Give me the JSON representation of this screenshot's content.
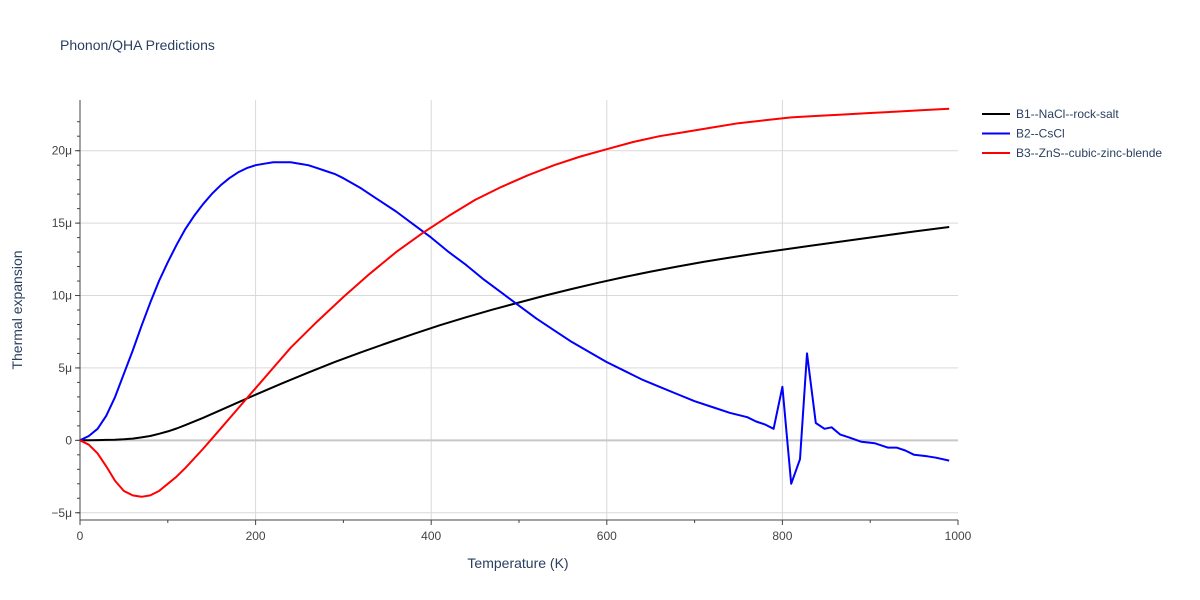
{
  "chart_data": {
    "type": "line",
    "title": "Phonon/QHA Predictions",
    "xlabel": "Temperature (K)",
    "ylabel": "Thermal expansion",
    "xlim": [
      0,
      1000
    ],
    "ylim": [
      -5.5e-06,
      2.35e-05
    ],
    "x_ticks": [
      0,
      200,
      400,
      600,
      800,
      1000
    ],
    "x_tick_labels": [
      "0",
      "200",
      "400",
      "600",
      "800",
      "1000"
    ],
    "y_ticks": [
      -5e-06,
      0,
      5e-06,
      1e-05,
      1.5e-05,
      2e-05
    ],
    "y_tick_labels": [
      "−5μ",
      "0",
      "5μ",
      "10μ",
      "15μ",
      "20μ"
    ],
    "grid": true,
    "legend_position": "top-right",
    "series": [
      {
        "name": "B1--NaCl--rock-salt",
        "color": "#000000",
        "x": [
          0,
          10,
          20,
          30,
          40,
          50,
          60,
          70,
          80,
          90,
          100,
          110,
          120,
          140,
          160,
          180,
          200,
          230,
          260,
          290,
          320,
          350,
          380,
          410,
          440,
          470,
          500,
          530,
          560,
          590,
          620,
          650,
          680,
          710,
          740,
          770,
          800,
          830,
          860,
          890,
          920,
          950,
          990
        ],
        "y": [
          0,
          1e-08,
          2e-08,
          3e-08,
          4e-08,
          7e-08,
          1.2e-07,
          2e-07,
          3e-07,
          4.5e-07,
          6.2e-07,
          8.2e-07,
          1.05e-06,
          1.55e-06,
          2.08e-06,
          2.62e-06,
          3.15e-06,
          3.93e-06,
          4.68e-06,
          5.4e-06,
          6.08e-06,
          6.72e-06,
          7.35e-06,
          7.95e-06,
          8.5e-06,
          9.03e-06,
          9.52e-06,
          1e-05,
          1.045e-05,
          1.088e-05,
          1.128e-05,
          1.165e-05,
          1.2e-05,
          1.232e-05,
          1.262e-05,
          1.29e-05,
          1.316e-05,
          1.342e-05,
          1.367e-05,
          1.392e-05,
          1.417e-05,
          1.442e-05,
          1.473e-05
        ]
      },
      {
        "name": "B2--CsCl",
        "color": "#0000ff",
        "x": [
          0,
          10,
          20,
          30,
          40,
          50,
          60,
          70,
          80,
          90,
          100,
          110,
          120,
          130,
          140,
          150,
          160,
          170,
          180,
          190,
          200,
          210,
          220,
          230,
          240,
          250,
          260,
          270,
          280,
          290,
          300,
          320,
          340,
          360,
          380,
          400,
          420,
          440,
          460,
          480,
          500,
          520,
          540,
          560,
          580,
          600,
          620,
          640,
          660,
          680,
          700,
          720,
          740,
          760,
          770,
          780,
          790,
          800,
          810,
          820,
          828,
          838,
          848,
          856,
          866,
          876,
          890,
          905,
          920,
          930,
          940,
          950,
          965,
          975,
          990
        ],
        "y": [
          0,
          3e-07,
          8e-07,
          1.7e-06,
          3e-06,
          4.6e-06,
          6.2e-06,
          7.9e-06,
          9.5e-06,
          1.1e-05,
          1.23e-05,
          1.35e-05,
          1.46e-05,
          1.55e-05,
          1.63e-05,
          1.7e-05,
          1.76e-05,
          1.81e-05,
          1.85e-05,
          1.88e-05,
          1.9e-05,
          1.91e-05,
          1.92e-05,
          1.92e-05,
          1.92e-05,
          1.91e-05,
          1.9e-05,
          1.88e-05,
          1.86e-05,
          1.84e-05,
          1.81e-05,
          1.74e-05,
          1.66e-05,
          1.58e-05,
          1.49e-05,
          1.4e-05,
          1.3e-05,
          1.21e-05,
          1.11e-05,
          1.02e-05,
          9.3e-06,
          8.4e-06,
          7.6e-06,
          6.8e-06,
          6.1e-06,
          5.4e-06,
          4.8e-06,
          4.2e-06,
          3.7e-06,
          3.2e-06,
          2.7e-06,
          2.3e-06,
          1.9e-06,
          1.6e-06,
          1.3e-06,
          1.1e-06,
          8e-07,
          3.7e-06,
          -3e-06,
          -1.3e-06,
          6e-06,
          1.2e-06,
          8e-07,
          9e-07,
          4e-07,
          2e-07,
          -1e-07,
          -2e-07,
          -5e-07,
          -5e-07,
          -7e-07,
          -1e-06,
          -1.1e-06,
          -1.2e-06,
          -1.4e-06
        ]
      },
      {
        "name": "B3--ZnS--cubic-zinc-blende",
        "color": "#ff0000",
        "x": [
          0,
          10,
          20,
          30,
          40,
          50,
          60,
          70,
          80,
          90,
          100,
          110,
          120,
          140,
          160,
          180,
          200,
          220,
          240,
          270,
          300,
          330,
          360,
          390,
          420,
          450,
          480,
          510,
          540,
          570,
          600,
          630,
          660,
          690,
          720,
          750,
          780,
          810,
          840,
          870,
          900,
          930,
          960,
          990
        ],
        "y": [
          0,
          -3e-07,
          -9e-07,
          -1.8e-06,
          -2.8e-06,
          -3.5e-06,
          -3.8e-06,
          -3.9e-06,
          -3.8e-06,
          -3.5e-06,
          -3e-06,
          -2.5e-06,
          -1.9e-06,
          -6e-07,
          8e-07,
          2.2e-06,
          3.6e-06,
          5e-06,
          6.4e-06,
          8.2e-06,
          9.9e-06,
          1.15e-05,
          1.3e-05,
          1.43e-05,
          1.55e-05,
          1.66e-05,
          1.75e-05,
          1.83e-05,
          1.9e-05,
          1.96e-05,
          2.01e-05,
          2.06e-05,
          2.1e-05,
          2.13e-05,
          2.16e-05,
          2.19e-05,
          2.21e-05,
          2.23e-05,
          2.24e-05,
          2.25e-05,
          2.26e-05,
          2.27e-05,
          2.28e-05,
          2.29e-05
        ]
      }
    ]
  }
}
